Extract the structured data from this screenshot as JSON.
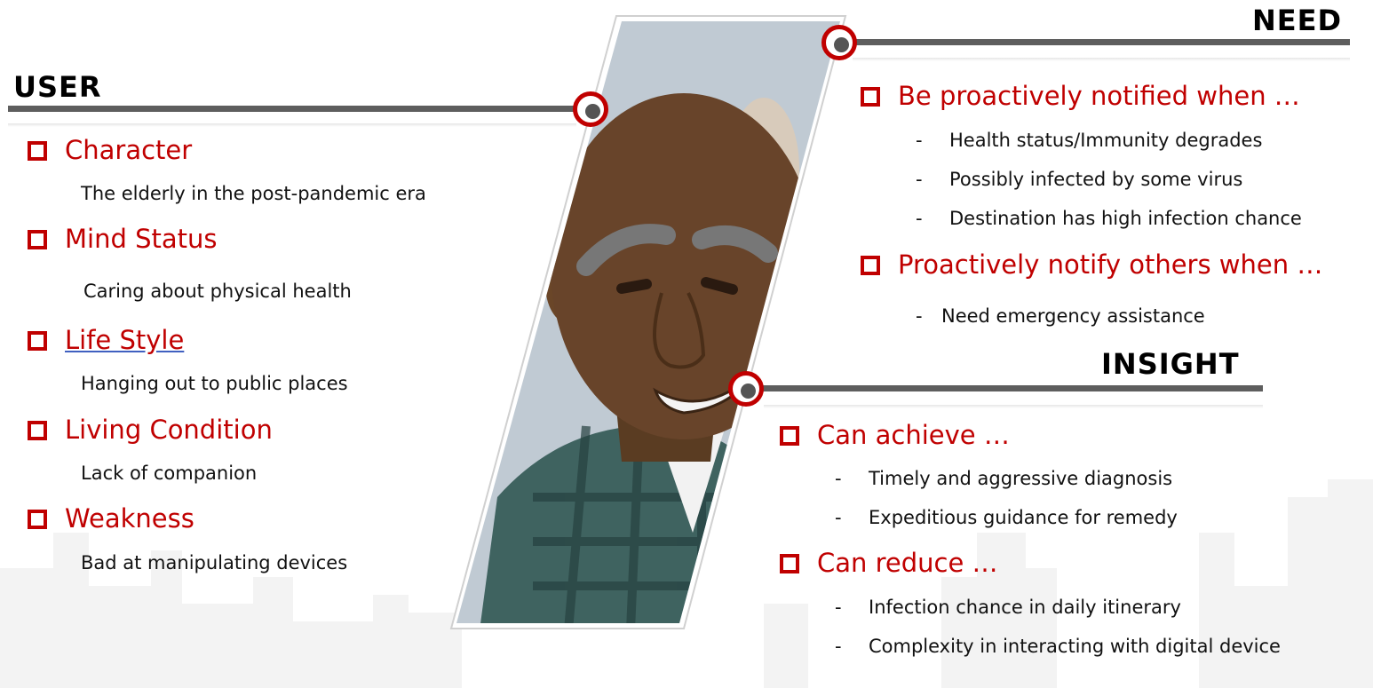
{
  "user": {
    "title": "USER",
    "items": [
      {
        "heading": "Character",
        "detail": "The elderly in the post-pandemic era"
      },
      {
        "heading": "Mind Status",
        "detail": "Caring about physical health"
      },
      {
        "heading": "Life Style",
        "detail": "Hanging out to public places"
      },
      {
        "heading": "Living Condition",
        "detail": "Lack of companion"
      },
      {
        "heading": "Weakness",
        "detail": "Bad at manipulating devices"
      }
    ]
  },
  "need": {
    "title": "NEED",
    "groups": [
      {
        "heading": "Be proactively notified when …",
        "items": [
          "Health status/Immunity degrades",
          "Possibly infected by some virus",
          "Destination has high infection chance"
        ]
      },
      {
        "heading": "Proactively notify others when …",
        "items": [
          "Need emergency assistance"
        ]
      }
    ]
  },
  "insight": {
    "title": "INSIGHT",
    "groups": [
      {
        "heading": "Can achieve …",
        "items": [
          "Timely and aggressive diagnosis",
          "Expeditious guidance for remedy"
        ]
      },
      {
        "heading": "Can reduce …",
        "items": [
          "Infection chance in daily itinerary",
          "Complexity in interacting with digital device"
        ]
      }
    ]
  },
  "bullet_marker": "-",
  "colors": {
    "accent": "#c00000",
    "rule": "#5e5e5e",
    "text": "#111111"
  }
}
